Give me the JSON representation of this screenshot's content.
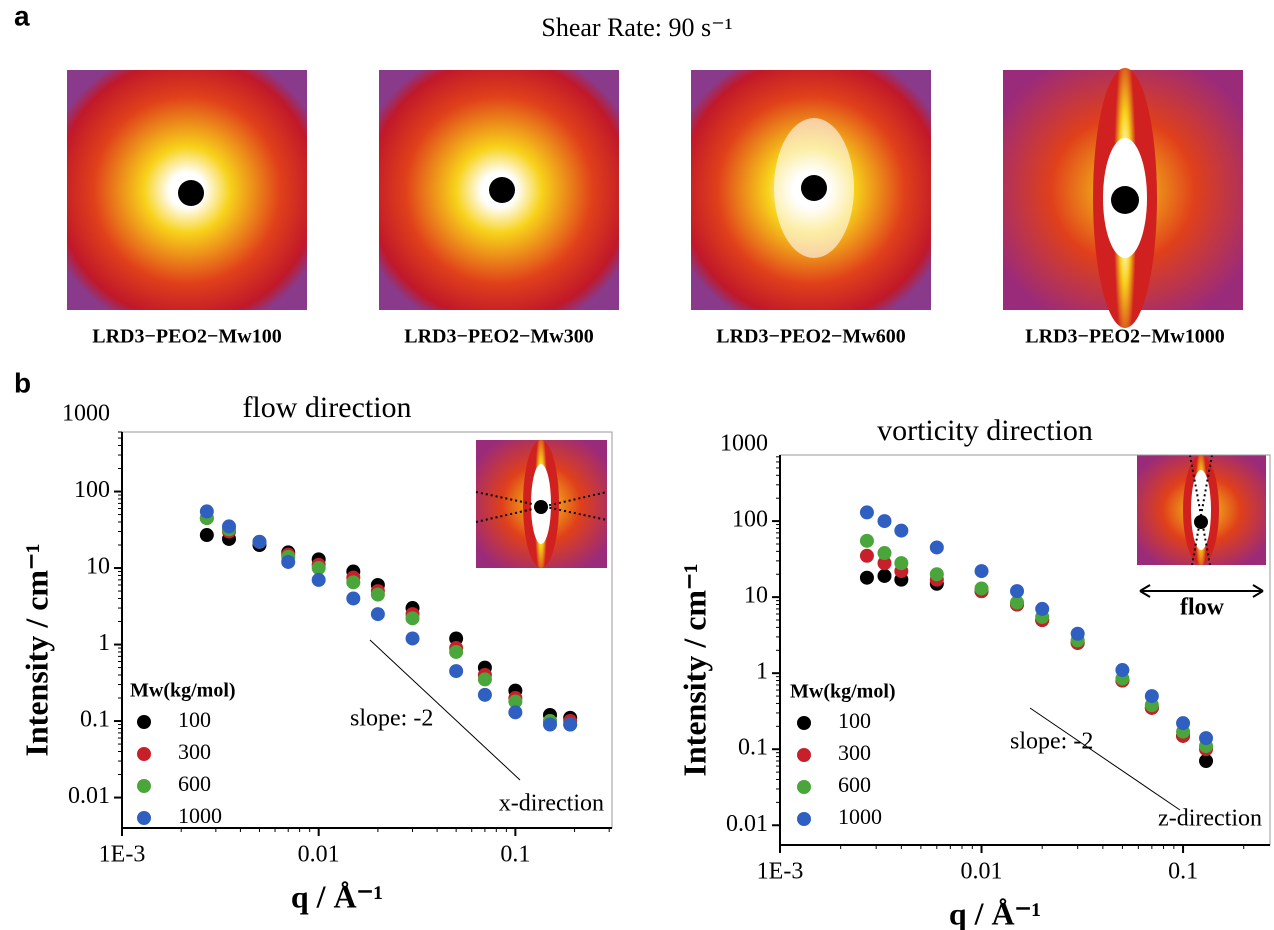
{
  "panel_a": {
    "label": "a",
    "title": "Shear Rate: 90 s⁻¹",
    "images": [
      "LRD3−PEO2−Mw100",
      "LRD3−PEO2−Mw300",
      "LRD3−PEO2−Mw600",
      "LRD3−PEO2−Mw1000"
    ]
  },
  "panel_b": {
    "label": "b",
    "inset_label": "flow"
  },
  "chart_data": [
    {
      "type": "scatter",
      "title": "flow direction",
      "x_label": "q / Å⁻¹",
      "y_label": "Intensity / cm⁻¹",
      "log_x": true,
      "log_y": true,
      "xlim": [
        0.001,
        0.31
      ],
      "ylim": [
        0.004,
        600
      ],
      "xticks": [
        {
          "value": 0.001,
          "label": "1E-3"
        },
        0.01,
        0.1
      ],
      "yticks": [
        0.01,
        0.1,
        1,
        10,
        100,
        1000
      ],
      "legend_title": "Mw(kg/mol)",
      "annotations": [
        "slope: -2",
        "x-direction"
      ],
      "x": [
        0.0027,
        0.0035,
        0.005,
        0.007,
        0.01,
        0.015,
        0.02,
        0.03,
        0.05,
        0.07,
        0.1,
        0.15,
        0.19
      ],
      "series": [
        {
          "name": "100",
          "color": "#000000",
          "values": [
            27,
            24,
            20,
            16,
            13,
            9,
            6,
            3,
            1.2,
            0.5,
            0.25,
            0.12,
            0.11
          ]
        },
        {
          "name": "300",
          "color": "#c8202a",
          "values": [
            45,
            30,
            22,
            15,
            11,
            7.5,
            5,
            2.5,
            0.9,
            0.4,
            0.2,
            0.1,
            0.1
          ]
        },
        {
          "name": "600",
          "color": "#4aa63a",
          "values": [
            45,
            32,
            22,
            14,
            10,
            6.5,
            4.5,
            2.2,
            0.8,
            0.35,
            0.18,
            0.1,
            0.09
          ]
        },
        {
          "name": "1000",
          "color": "#2f5fc0",
          "values": [
            55,
            35,
            22,
            12,
            7,
            4,
            2.5,
            1.2,
            0.45,
            0.22,
            0.13,
            0.09,
            0.09
          ]
        }
      ]
    },
    {
      "type": "scatter",
      "title": "vorticity direction",
      "x_label": "q / Å⁻¹",
      "y_label": "Intensity / cm⁻¹",
      "log_x": true,
      "log_y": true,
      "xlim": [
        0.001,
        0.27
      ],
      "ylim": [
        0.0055,
        740
      ],
      "xticks": [
        {
          "value": 0.001,
          "label": "1E-3"
        },
        0.01,
        0.1
      ],
      "yticks": [
        0.01,
        0.1,
        1,
        10,
        100,
        1000
      ],
      "legend_title": "Mw(kg/mol)",
      "annotations": [
        "slope: -2",
        "z-direction"
      ],
      "x": [
        0.0027,
        0.0033,
        0.004,
        0.006,
        0.01,
        0.015,
        0.02,
        0.03,
        0.05,
        0.07,
        0.1,
        0.13
      ],
      "series": [
        {
          "name": "100",
          "color": "#000000",
          "values": [
            18,
            19,
            17,
            15,
            12,
            8,
            5,
            2.5,
            0.8,
            0.35,
            0.15,
            0.07
          ]
        },
        {
          "name": "300",
          "color": "#c8202a",
          "values": [
            35,
            28,
            22,
            17,
            12,
            8,
            5,
            2.5,
            0.8,
            0.35,
            0.15,
            0.1
          ]
        },
        {
          "name": "600",
          "color": "#4aa63a",
          "values": [
            55,
            38,
            28,
            20,
            13,
            8.5,
            5.5,
            2.7,
            0.85,
            0.38,
            0.17,
            0.11
          ]
        },
        {
          "name": "1000",
          "color": "#2f5fc0",
          "values": [
            130,
            100,
            75,
            45,
            22,
            12,
            7,
            3.3,
            1.1,
            0.5,
            0.22,
            0.14
          ]
        }
      ]
    }
  ]
}
